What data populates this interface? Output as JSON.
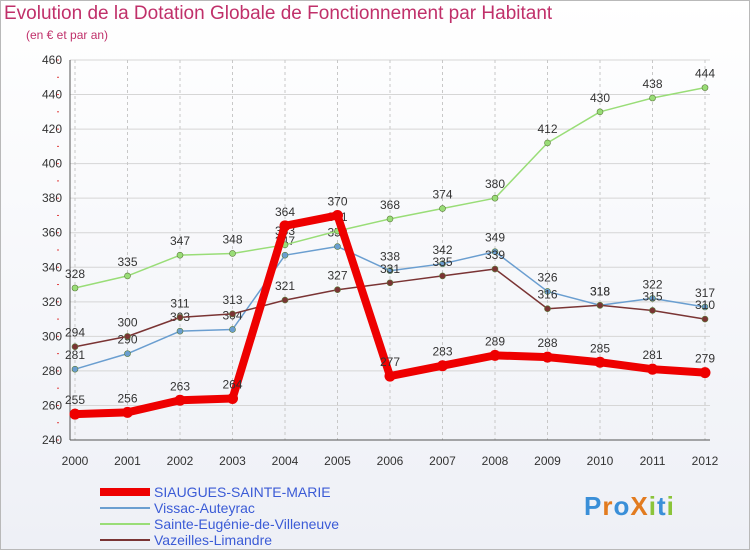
{
  "chart_data": {
    "type": "line",
    "title": "Evolution de la Dotation Globale de Fonctionnement par Habitant",
    "subtitle": "(en € et par an)",
    "categories": [
      "2000",
      "2001",
      "2002",
      "2003",
      "2004",
      "2005",
      "2006",
      "2007",
      "2008",
      "2009",
      "2010",
      "2011",
      "2012"
    ],
    "ylim": [
      240,
      460
    ],
    "yticks": [
      240,
      260,
      280,
      300,
      320,
      340,
      360,
      380,
      400,
      420,
      440,
      460
    ],
    "grid": true,
    "legend_position": "bottom-left",
    "series": [
      {
        "name": "SIAUGUES-SAINTE-MARIE",
        "color": "#ee0000",
        "values": [
          255,
          256,
          263,
          264,
          364,
          370,
          277,
          283,
          289,
          288,
          285,
          281,
          279
        ],
        "bold": true
      },
      {
        "name": "Vissac-Auteyrac",
        "color": "#6a9ed0",
        "values": [
          281,
          290,
          303,
          304,
          347,
          352,
          338,
          342,
          349,
          326,
          318,
          322,
          317
        ],
        "bold": false
      },
      {
        "name": "Sainte-Eugénie-de-Villeneuve",
        "color": "#99dd77",
        "values": [
          328,
          335,
          347,
          348,
          353,
          361,
          368,
          374,
          380,
          412,
          430,
          438,
          444
        ],
        "bold": false
      },
      {
        "name": "Vazeilles-Limandre",
        "color": "#7a3434",
        "values": [
          294,
          300,
          311,
          313,
          321,
          327,
          331,
          335,
          339,
          316,
          318,
          315,
          310
        ],
        "bold": false
      }
    ]
  },
  "logo": {
    "text": "ProXiti",
    "letters": [
      "P",
      "r",
      "o",
      "X",
      "i",
      "t",
      "i"
    ],
    "colors": [
      "#3a8fd8",
      "#e27b1f",
      "#3a8fd8",
      "#e27b1f",
      "#8bc43a",
      "#3a8fd8",
      "#8bc43a"
    ]
  }
}
